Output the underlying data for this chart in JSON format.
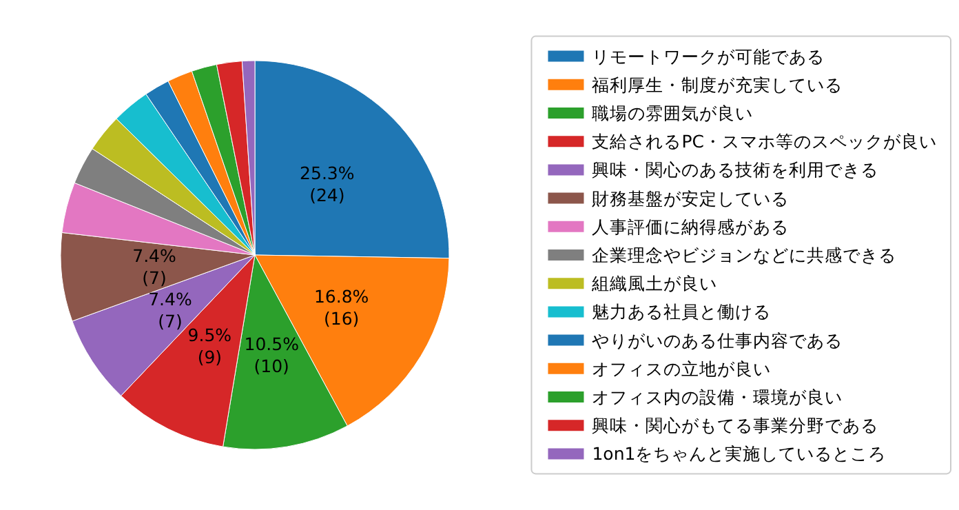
{
  "chart_data": {
    "type": "pie",
    "categories": [
      "リモートワークが可能である",
      "福利厚生・制度が充実している",
      "職場の雰囲気が良い",
      "支給されるPC・スマホ等のスペックが良い",
      "興味・関心のある技術を利用できる",
      "財務基盤が安定している",
      "人事評価に納得感がある",
      "企業理念やビジョンなどに共感できる",
      "組織風土が良い",
      "魅力ある社員と働ける",
      "やりがいのある仕事内容である",
      "オフィスの立地が良い",
      "オフィス内の設備・環境が良い",
      "興味・関心がもてる事業分野である",
      "1on1をちゃんと実施しているところ"
    ],
    "values": [
      24,
      16,
      10,
      9,
      7,
      7,
      4,
      3,
      3,
      3,
      2,
      2,
      2,
      2,
      1
    ],
    "value_labels": [
      "25.3%\n(24)",
      "16.8%\n(16)",
      "10.5%\n(10)",
      "9.5%\n(9)",
      "7.4%\n(7)",
      "7.4%\n(7)",
      null,
      null,
      null,
      null,
      null,
      null,
      null,
      null,
      null
    ],
    "colors": [
      "#1f77b4",
      "#ff7f0e",
      "#2ca02c",
      "#d62728",
      "#9467bd",
      "#8c564b",
      "#e377c2",
      "#7f7f7f",
      "#bcbd22",
      "#17becf",
      "#1f77b4",
      "#ff7f0e",
      "#2ca02c",
      "#d62728",
      "#9467bd"
    ],
    "legend": "right"
  }
}
